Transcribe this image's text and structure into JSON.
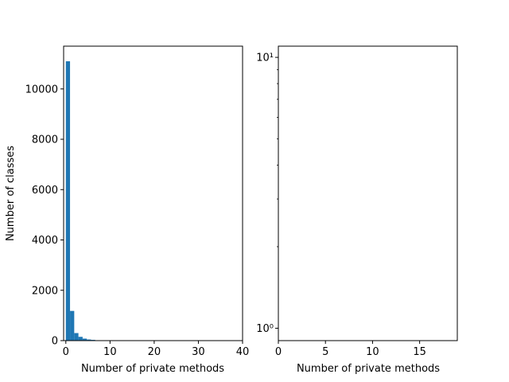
{
  "chart_data": [
    {
      "type": "bar",
      "subtype": "histogram",
      "xlabel": "Number of private methods",
      "ylabel": "Number of classes",
      "xlim": [
        -0.5,
        40
      ],
      "ylim": [
        0,
        11700
      ],
      "xticks": [
        0,
        10,
        20,
        30,
        40
      ],
      "xtick_labels": [
        "0",
        "10",
        "20",
        "30",
        "40"
      ],
      "yticks": [
        0,
        2000,
        4000,
        6000,
        8000,
        10000
      ],
      "ytick_labels": [
        "0",
        "2000",
        "4000",
        "6000",
        "8000",
        "10000"
      ],
      "bin_width": 0.95,
      "bins": [
        {
          "x": 0,
          "count": 11100
        },
        {
          "x": 0.95,
          "count": 1180
        },
        {
          "x": 1.9,
          "count": 300
        },
        {
          "x": 2.85,
          "count": 150
        },
        {
          "x": 3.8,
          "count": 80
        },
        {
          "x": 4.75,
          "count": 45
        },
        {
          "x": 5.7,
          "count": 30
        },
        {
          "x": 6.65,
          "count": 15
        },
        {
          "x": 7.6,
          "count": 10
        }
      ],
      "color": "#1f77b4",
      "grid": false
    },
    {
      "type": "bar",
      "subtype": "histogram",
      "xlabel": "Number of private methods",
      "ylabel": "",
      "yscale": "log",
      "xlim": [
        0,
        19
      ],
      "ylim": [
        0.9,
        11
      ],
      "xticks": [
        0,
        5,
        10,
        15
      ],
      "xtick_labels": [
        "0",
        "5",
        "10",
        "15"
      ],
      "yticks_major": [
        1,
        10
      ],
      "ytick_labels": [
        "10⁰",
        "10¹"
      ],
      "bins": [],
      "color": "#1f77b4",
      "grid": false
    }
  ]
}
